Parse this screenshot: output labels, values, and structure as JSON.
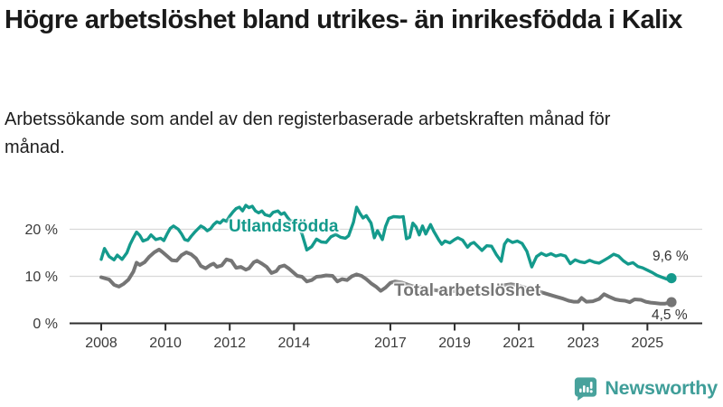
{
  "header": {
    "title": "Högre arbetslöshet bland utrikes- än inrikesfödda i Kalix",
    "subtitle": "Arbetssökande som andel av den registerbaserade arbetskraften månad för månad."
  },
  "chart_data": {
    "type": "line",
    "title": "Högre arbetslöshet bland utrikes- än inrikesfödda i Kalix",
    "xlabel": "",
    "ylabel": "",
    "unit": "%",
    "xlim": [
      2008,
      2025.75
    ],
    "ylim": [
      0,
      27
    ],
    "grid": "horizontal",
    "x_ticks": [
      "2008",
      "2010",
      "2012",
      "2014",
      "2017",
      "2019",
      "2021",
      "2023",
      "2025"
    ],
    "y_ticks": [
      "20 %",
      "10 %",
      "0 %"
    ],
    "y_tick_values": [
      20,
      10,
      0
    ],
    "y_grid_values": [
      20,
      10
    ],
    "series": [
      {
        "name": "Utlandsfödda",
        "color": "#149a8c",
        "end_label": "9,6 %",
        "end_value": 9.6,
        "points": [
          [
            2008.0,
            13.6
          ],
          [
            2008.1,
            15.9
          ],
          [
            2008.25,
            14.2
          ],
          [
            2008.4,
            13.5
          ],
          [
            2008.5,
            14.5
          ],
          [
            2008.65,
            13.6
          ],
          [
            2008.8,
            15.0
          ],
          [
            2008.9,
            16.8
          ],
          [
            2009.0,
            18.2
          ],
          [
            2009.1,
            19.4
          ],
          [
            2009.2,
            18.7
          ],
          [
            2009.3,
            17.5
          ],
          [
            2009.45,
            17.9
          ],
          [
            2009.55,
            18.8
          ],
          [
            2009.7,
            17.8
          ],
          [
            2009.85,
            18.1
          ],
          [
            2009.95,
            17.6
          ],
          [
            2010.05,
            19.0
          ],
          [
            2010.15,
            20.2
          ],
          [
            2010.25,
            20.7
          ],
          [
            2010.4,
            20.0
          ],
          [
            2010.5,
            19.0
          ],
          [
            2010.6,
            17.8
          ],
          [
            2010.7,
            17.6
          ],
          [
            2010.8,
            18.5
          ],
          [
            2010.9,
            19.3
          ],
          [
            2011.0,
            20.0
          ],
          [
            2011.1,
            20.7
          ],
          [
            2011.2,
            20.3
          ],
          [
            2011.3,
            19.7
          ],
          [
            2011.4,
            20.1
          ],
          [
            2011.5,
            21.0
          ],
          [
            2011.6,
            21.6
          ],
          [
            2011.7,
            21.3
          ],
          [
            2011.8,
            22.0
          ],
          [
            2011.9,
            21.7
          ],
          [
            2012.0,
            22.8
          ],
          [
            2012.1,
            23.7
          ],
          [
            2012.2,
            24.4
          ],
          [
            2012.3,
            24.7
          ],
          [
            2012.4,
            23.9
          ],
          [
            2012.5,
            25.1
          ],
          [
            2012.6,
            24.6
          ],
          [
            2012.7,
            24.9
          ],
          [
            2012.8,
            23.9
          ],
          [
            2012.9,
            23.5
          ],
          [
            2013.0,
            23.9
          ],
          [
            2013.1,
            23.1
          ],
          [
            2013.25,
            22.8
          ],
          [
            2013.35,
            23.6
          ],
          [
            2013.5,
            23.9
          ],
          [
            2013.6,
            23.2
          ],
          [
            2013.7,
            23.5
          ],
          [
            2013.8,
            22.5
          ],
          [
            2013.9,
            21.7
          ],
          [
            2014.0,
            21.9
          ],
          [
            2014.1,
            21.2
          ],
          [
            2014.25,
            19.0
          ],
          [
            2014.4,
            15.6
          ],
          [
            2014.55,
            16.3
          ],
          [
            2014.7,
            17.9
          ],
          [
            2014.85,
            17.3
          ],
          [
            2015.0,
            17.2
          ],
          [
            2015.15,
            18.4
          ],
          [
            2015.3,
            18.9
          ],
          [
            2015.45,
            18.3
          ],
          [
            2015.6,
            18.1
          ],
          [
            2015.7,
            18.6
          ],
          [
            2015.85,
            21.5
          ],
          [
            2015.95,
            24.7
          ],
          [
            2016.05,
            23.4
          ],
          [
            2016.15,
            22.4
          ],
          [
            2016.25,
            22.9
          ],
          [
            2016.4,
            21.3
          ],
          [
            2016.5,
            18.2
          ],
          [
            2016.6,
            19.7
          ],
          [
            2016.75,
            17.8
          ],
          [
            2016.85,
            20.6
          ],
          [
            2016.95,
            22.3
          ],
          [
            2017.1,
            22.7
          ],
          [
            2017.3,
            22.6
          ],
          [
            2017.4,
            22.7
          ],
          [
            2017.5,
            18.0
          ],
          [
            2017.6,
            18.3
          ],
          [
            2017.7,
            21.3
          ],
          [
            2017.8,
            20.5
          ],
          [
            2017.9,
            18.8
          ],
          [
            2018.0,
            20.7
          ],
          [
            2018.1,
            19.0
          ],
          [
            2018.25,
            21.0
          ],
          [
            2018.35,
            19.6
          ],
          [
            2018.5,
            17.8
          ],
          [
            2018.6,
            16.8
          ],
          [
            2018.7,
            17.5
          ],
          [
            2018.85,
            17.1
          ],
          [
            2019.0,
            17.8
          ],
          [
            2019.1,
            18.2
          ],
          [
            2019.25,
            17.7
          ],
          [
            2019.4,
            16.2
          ],
          [
            2019.5,
            16.9
          ],
          [
            2019.6,
            17.2
          ],
          [
            2019.75,
            16.2
          ],
          [
            2019.85,
            15.5
          ],
          [
            2020.0,
            16.5
          ],
          [
            2020.15,
            16.4
          ],
          [
            2020.3,
            14.6
          ],
          [
            2020.45,
            13.2
          ],
          [
            2020.55,
            16.8
          ],
          [
            2020.65,
            17.8
          ],
          [
            2020.8,
            17.2
          ],
          [
            2020.95,
            17.5
          ],
          [
            2021.1,
            17.0
          ],
          [
            2021.25,
            15.3
          ],
          [
            2021.4,
            12.0
          ],
          [
            2021.55,
            14.2
          ],
          [
            2021.7,
            14.9
          ],
          [
            2021.85,
            14.4
          ],
          [
            2022.0,
            14.8
          ],
          [
            2022.15,
            14.3
          ],
          [
            2022.3,
            14.6
          ],
          [
            2022.45,
            14.3
          ],
          [
            2022.6,
            12.7
          ],
          [
            2022.75,
            13.5
          ],
          [
            2022.9,
            13.1
          ],
          [
            2023.05,
            12.9
          ],
          [
            2023.2,
            13.4
          ],
          [
            2023.35,
            13.0
          ],
          [
            2023.5,
            12.8
          ],
          [
            2023.65,
            13.4
          ],
          [
            2023.8,
            14.0
          ],
          [
            2023.95,
            14.7
          ],
          [
            2024.1,
            14.3
          ],
          [
            2024.25,
            13.3
          ],
          [
            2024.4,
            12.6
          ],
          [
            2024.55,
            12.9
          ],
          [
            2024.7,
            12.1
          ],
          [
            2024.85,
            11.8
          ],
          [
            2025.0,
            11.3
          ],
          [
            2025.15,
            10.8
          ],
          [
            2025.3,
            10.2
          ],
          [
            2025.45,
            9.8
          ],
          [
            2025.6,
            9.4
          ],
          [
            2025.75,
            9.6
          ]
        ]
      },
      {
        "name": "Total arbetslöshet",
        "color": "#757575",
        "end_label": "4,5 %",
        "end_value": 4.5,
        "points": [
          [
            2008.0,
            9.8
          ],
          [
            2008.1,
            9.6
          ],
          [
            2008.25,
            9.3
          ],
          [
            2008.4,
            8.2
          ],
          [
            2008.55,
            7.8
          ],
          [
            2008.7,
            8.4
          ],
          [
            2008.85,
            9.3
          ],
          [
            2009.0,
            11.0
          ],
          [
            2009.1,
            12.9
          ],
          [
            2009.2,
            12.4
          ],
          [
            2009.35,
            13.0
          ],
          [
            2009.5,
            14.2
          ],
          [
            2009.65,
            15.1
          ],
          [
            2009.8,
            15.7
          ],
          [
            2009.9,
            15.2
          ],
          [
            2010.05,
            14.3
          ],
          [
            2010.2,
            13.4
          ],
          [
            2010.35,
            13.3
          ],
          [
            2010.5,
            14.5
          ],
          [
            2010.65,
            15.1
          ],
          [
            2010.8,
            14.7
          ],
          [
            2010.95,
            13.8
          ],
          [
            2011.1,
            12.2
          ],
          [
            2011.25,
            11.7
          ],
          [
            2011.4,
            12.4
          ],
          [
            2011.5,
            12.7
          ],
          [
            2011.6,
            12.0
          ],
          [
            2011.75,
            12.3
          ],
          [
            2011.9,
            13.6
          ],
          [
            2012.05,
            13.3
          ],
          [
            2012.2,
            11.8
          ],
          [
            2012.35,
            12.0
          ],
          [
            2012.5,
            11.4
          ],
          [
            2012.6,
            11.7
          ],
          [
            2012.75,
            13.0
          ],
          [
            2012.85,
            13.3
          ],
          [
            2013.0,
            12.7
          ],
          [
            2013.15,
            12.0
          ],
          [
            2013.3,
            10.7
          ],
          [
            2013.45,
            11.1
          ],
          [
            2013.55,
            12.0
          ],
          [
            2013.7,
            12.3
          ],
          [
            2013.85,
            11.6
          ],
          [
            2014.0,
            10.7
          ],
          [
            2014.1,
            10.1
          ],
          [
            2014.25,
            9.9
          ],
          [
            2014.4,
            8.9
          ],
          [
            2014.55,
            9.2
          ],
          [
            2014.7,
            9.9
          ],
          [
            2014.85,
            10.0
          ],
          [
            2015.0,
            10.2
          ],
          [
            2015.2,
            10.1
          ],
          [
            2015.35,
            8.9
          ],
          [
            2015.5,
            9.4
          ],
          [
            2015.65,
            9.2
          ],
          [
            2015.8,
            10.0
          ],
          [
            2015.95,
            10.4
          ],
          [
            2016.1,
            10.1
          ],
          [
            2016.25,
            9.4
          ],
          [
            2016.4,
            8.5
          ],
          [
            2016.55,
            7.8
          ],
          [
            2016.7,
            6.9
          ],
          [
            2016.85,
            7.6
          ],
          [
            2017.0,
            8.6
          ],
          [
            2017.15,
            8.9
          ],
          [
            2017.35,
            8.7
          ],
          [
            2017.55,
            8.2
          ],
          [
            2017.75,
            7.8
          ],
          [
            2017.95,
            7.7
          ],
          [
            2018.15,
            7.4
          ],
          [
            2018.35,
            7.1
          ],
          [
            2018.55,
            6.9
          ],
          [
            2018.75,
            6.8
          ],
          [
            2018.95,
            6.9
          ],
          [
            2019.15,
            6.7
          ],
          [
            2019.35,
            6.5
          ],
          [
            2019.55,
            6.4
          ],
          [
            2019.75,
            6.3
          ],
          [
            2019.95,
            6.2
          ],
          [
            2020.15,
            6.5
          ],
          [
            2020.35,
            7.4
          ],
          [
            2020.55,
            8.1
          ],
          [
            2020.75,
            8.3
          ],
          [
            2020.95,
            8.1
          ],
          [
            2021.15,
            7.7
          ],
          [
            2021.35,
            7.3
          ],
          [
            2021.55,
            6.9
          ],
          [
            2021.75,
            6.5
          ],
          [
            2021.95,
            6.1
          ],
          [
            2022.15,
            5.7
          ],
          [
            2022.35,
            5.3
          ],
          [
            2022.55,
            4.8
          ],
          [
            2022.7,
            4.6
          ],
          [
            2022.85,
            4.6
          ],
          [
            2022.95,
            5.4
          ],
          [
            2023.1,
            4.6
          ],
          [
            2023.3,
            4.7
          ],
          [
            2023.5,
            5.2
          ],
          [
            2023.65,
            6.2
          ],
          [
            2023.8,
            5.7
          ],
          [
            2024.0,
            5.1
          ],
          [
            2024.15,
            4.9
          ],
          [
            2024.3,
            4.8
          ],
          [
            2024.45,
            4.5
          ],
          [
            2024.6,
            5.1
          ],
          [
            2024.8,
            5.0
          ],
          [
            2024.95,
            4.6
          ],
          [
            2025.1,
            4.4
          ],
          [
            2025.25,
            4.3
          ],
          [
            2025.4,
            4.2
          ],
          [
            2025.55,
            4.2
          ],
          [
            2025.75,
            4.5
          ]
        ]
      }
    ]
  },
  "branding": {
    "logo_text": "Newsworthy"
  },
  "colors": {
    "series_foreign_born": "#149a8c",
    "series_total": "#757575",
    "grid": "#d9d9d9",
    "axis": "#2e2e2e",
    "tick_label": "#3a3a3a",
    "title_text": "#1a1a1a",
    "brand_teal": "#3f9e99",
    "background": "#ffffff"
  }
}
